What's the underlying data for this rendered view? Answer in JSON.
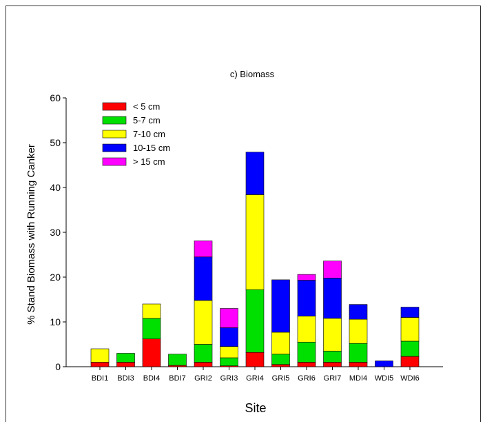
{
  "chart_data": {
    "type": "bar",
    "stacked": true,
    "title": "c) Biomass",
    "xlabel": "Site",
    "ylabel": "% Stand Biomass with Running Canker",
    "ylim": [
      0,
      60
    ],
    "yticks": [
      0,
      10,
      20,
      30,
      40,
      50,
      60
    ],
    "grid": false,
    "legend_position": "top-left",
    "categories": [
      "BDI1",
      "BDI3",
      "BDI4",
      "BDI7",
      "GRI2",
      "GRI3",
      "GRI4",
      "GRI5",
      "GRI6",
      "GRI7",
      "MDI4",
      "WDI5",
      "WDI6"
    ],
    "series": [
      {
        "name": "< 5 cm",
        "color": "#ff0000",
        "values": [
          1.0,
          1.0,
          6.2,
          0.3,
          1.0,
          0.2,
          3.2,
          0.5,
          1.0,
          1.0,
          1.0,
          0.0,
          2.3
        ]
      },
      {
        "name": "5-7 cm",
        "color": "#00e000",
        "values": [
          0.0,
          2.0,
          4.6,
          2.5,
          4.0,
          1.8,
          14.0,
          2.3,
          4.5,
          2.5,
          4.2,
          0.0,
          3.4
        ]
      },
      {
        "name": "7-10 cm",
        "color": "#ffff00",
        "values": [
          3.0,
          0.0,
          3.2,
          0.0,
          9.8,
          2.5,
          21.2,
          4.9,
          5.8,
          7.3,
          5.4,
          0.0,
          5.3
        ]
      },
      {
        "name": "10-15 cm",
        "color": "#0000ff",
        "values": [
          0.0,
          0.0,
          0.0,
          0.0,
          9.7,
          4.2,
          9.5,
          11.7,
          8.0,
          9.0,
          3.3,
          1.3,
          2.3
        ]
      },
      {
        "name": "> 15 cm",
        "color": "#ff00ff",
        "values": [
          0.0,
          0.0,
          0.0,
          0.0,
          3.6,
          4.3,
          0.0,
          0.0,
          1.3,
          3.8,
          0.0,
          0.0,
          0.0
        ]
      }
    ]
  }
}
